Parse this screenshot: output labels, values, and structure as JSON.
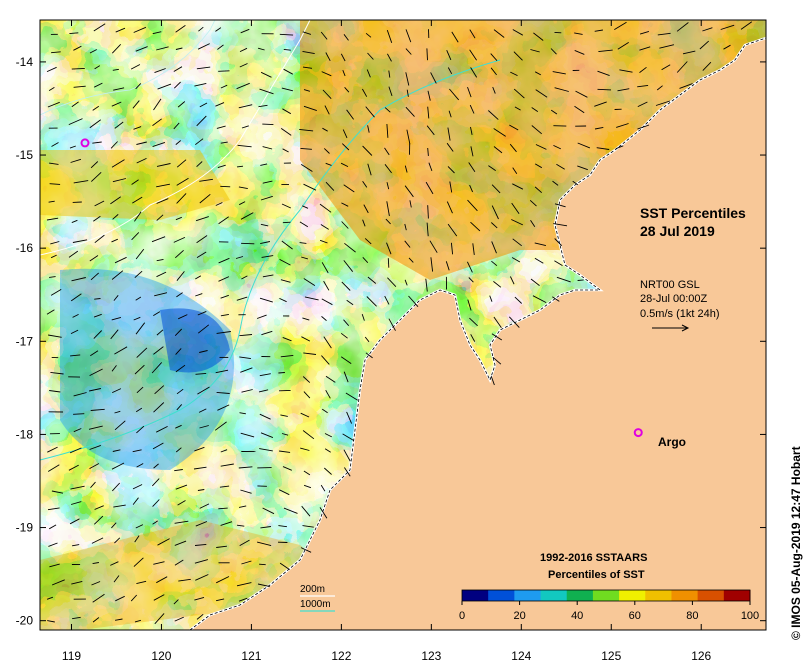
{
  "map": {
    "title": "SST Percentiles",
    "date": "28 Jul 2019",
    "current_source": "NRT00 GSL",
    "current_time": "28-Jul 00:00Z",
    "current_scale": "0.5m/s (1kt 24h)",
    "argo_label": "Argo",
    "credit": "© IMOS 05-Aug-2019 12:47 Hobart",
    "legend_title_1": "1992-2016 SSTAARS",
    "legend_title_2": "Percentiles of SST",
    "contour_200": "200m",
    "contour_1000": "1000m",
    "x_ticks": [
      "119",
      "120",
      "121",
      "122",
      "123",
      "124",
      "125",
      "126"
    ],
    "y_ticks": [
      "-14",
      "-15",
      "-16",
      "-17",
      "-18",
      "-19",
      "-20"
    ],
    "x_range": [
      118.65,
      126.72
    ],
    "y_range": [
      -20.1,
      -13.55
    ],
    "colorbar": {
      "labels": [
        "0",
        "20",
        "40",
        "60",
        "80",
        "100"
      ],
      "colors": [
        "#000080",
        "#0050d8",
        "#1e9bf0",
        "#12c8c0",
        "#10b050",
        "#70dc20",
        "#f0f000",
        "#f0c000",
        "#f09000",
        "#d85000",
        "#a00000"
      ]
    },
    "colors": {
      "land": "#f8c898",
      "coast": "#ffffff",
      "contour_200": "#ffffff",
      "contour_1000": "#40e0d0",
      "argo": "#e000e0"
    },
    "argo_floats": [
      [
        119.15,
        -14.87
      ],
      [
        125.3,
        -17.98
      ]
    ]
  }
}
